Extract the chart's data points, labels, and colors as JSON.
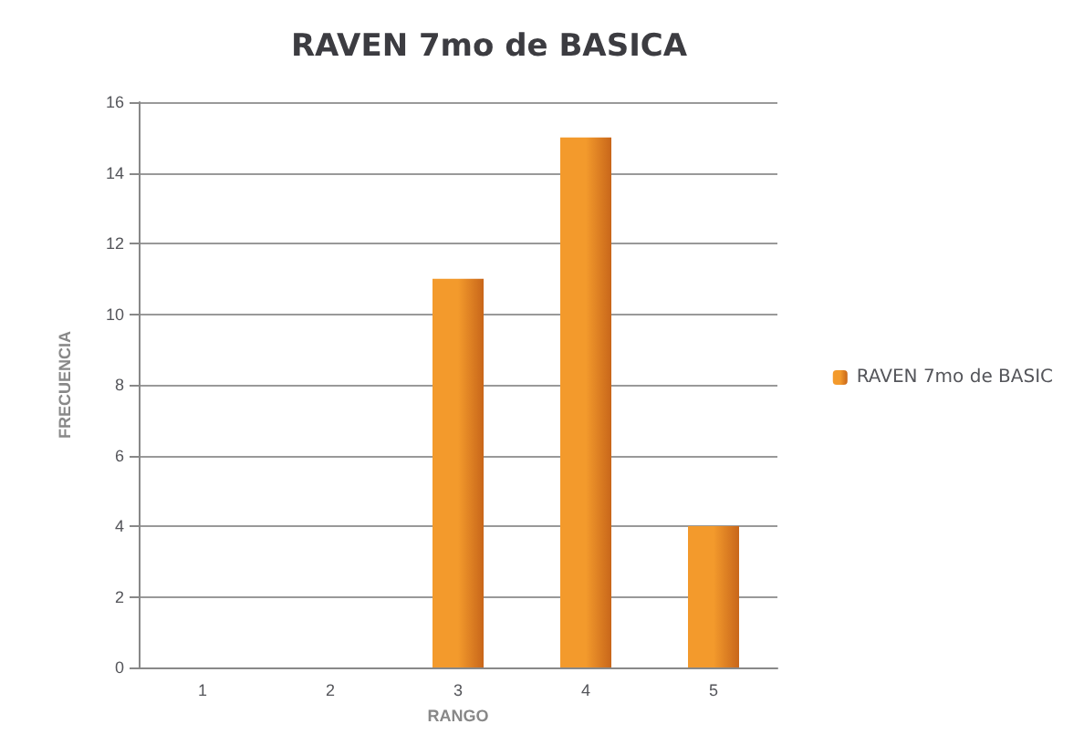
{
  "chart_data": {
    "type": "bar",
    "title": "RAVEN 7mo de BASICA",
    "xlabel": "RANGO",
    "ylabel": "FRECUENCIA",
    "categories": [
      "1",
      "2",
      "3",
      "4",
      "5"
    ],
    "series": [
      {
        "name": "RAVEN 7mo de BASIC",
        "color": "#f39a2c",
        "values": [
          0,
          0,
          11,
          15,
          4
        ]
      }
    ],
    "ylim": [
      0,
      16
    ],
    "yticks": [
      0,
      2,
      4,
      6,
      8,
      10,
      12,
      14,
      16
    ],
    "grid": "y",
    "legend": "right"
  }
}
